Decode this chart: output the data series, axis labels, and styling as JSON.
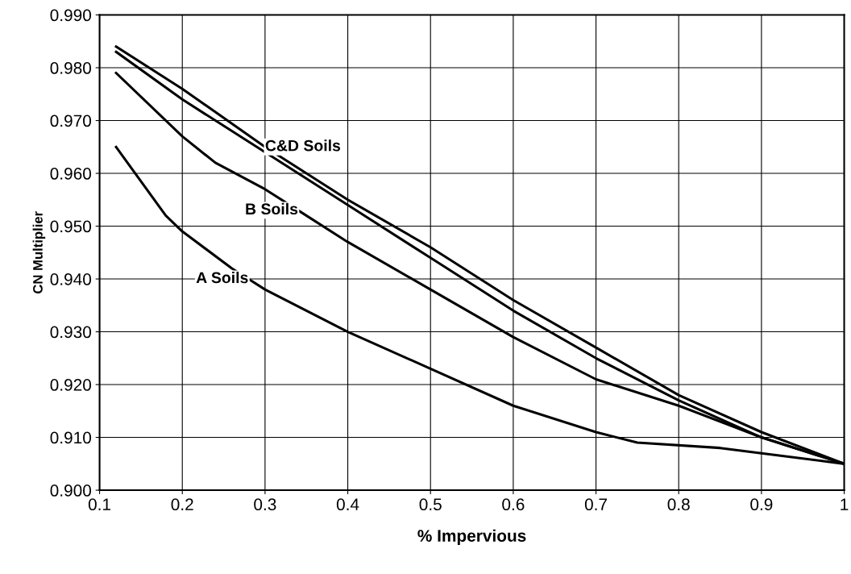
{
  "chart_data": {
    "type": "line",
    "xlabel": "% Impervious",
    "ylabel": "CN Multiplier",
    "xlim": [
      0.1,
      1
    ],
    "xticks": [
      0.1,
      0.2,
      0.3,
      0.4,
      0.5,
      0.6,
      0.7,
      0.8,
      0.9,
      1
    ],
    "ylim": [
      0.9,
      0.99
    ],
    "yticks": [
      {
        "value": 0.9,
        "label": "0.900"
      },
      {
        "value": 0.91,
        "label": "0.910"
      },
      {
        "value": 0.92,
        "label": "0.920"
      },
      {
        "value": 0.93,
        "label": "0.930"
      },
      {
        "value": 0.94,
        "label": "0.940"
      },
      {
        "value": 0.95,
        "label": "0.950"
      },
      {
        "value": 0.96,
        "label": "0.960"
      },
      {
        "value": 0.97,
        "label": "0.970"
      },
      {
        "value": 0.98,
        "label": "0.980"
      },
      {
        "value": 0.99,
        "label": "0.990"
      }
    ],
    "grid": true,
    "marker": "none",
    "line_style": "solid",
    "series": [
      {
        "color": "#000000",
        "x": [
          0.12,
          0.18,
          0.2,
          0.26,
          0.28,
          0.3,
          0.4,
          0.5,
          0.6,
          0.7,
          0.75,
          0.85,
          0.9,
          1.0
        ],
        "values": [
          0.965,
          0.952,
          0.949,
          0.942,
          0.94,
          0.938,
          0.93,
          0.923,
          0.916,
          0.911,
          0.909,
          0.908,
          0.907,
          0.905
        ]
      },
      {
        "color": "#000000",
        "x": [
          0.12,
          0.2,
          0.24,
          0.3,
          0.34,
          0.4,
          0.5,
          0.6,
          0.7,
          0.8,
          0.9,
          1.0
        ],
        "values": [
          0.979,
          0.967,
          0.962,
          0.957,
          0.953,
          0.947,
          0.938,
          0.929,
          0.921,
          0.916,
          0.91,
          0.905
        ]
      },
      {
        "color": "#000000",
        "x": [
          0.12,
          0.2,
          0.3,
          0.4,
          0.5,
          0.6,
          0.7,
          0.8,
          0.9,
          1.0
        ],
        "values": [
          0.983,
          0.974,
          0.964,
          0.954,
          0.944,
          0.934,
          0.925,
          0.917,
          0.91,
          0.905
        ]
      },
      {
        "color": "#000000",
        "x": [
          0.12,
          0.2,
          0.3,
          0.4,
          0.5,
          0.6,
          0.7,
          0.8,
          0.9,
          1.0
        ],
        "values": [
          0.984,
          0.976,
          0.965,
          0.955,
          0.946,
          0.936,
          0.927,
          0.918,
          0.911,
          0.905
        ]
      }
    ],
    "annotations": [
      {
        "text": "C&D Soils",
        "x": 0.3,
        "y": 0.965
      },
      {
        "text": "B Soils",
        "x": 0.34,
        "y": 0.953
      },
      {
        "text": "A Soils",
        "x": 0.28,
        "y": 0.94
      }
    ]
  }
}
